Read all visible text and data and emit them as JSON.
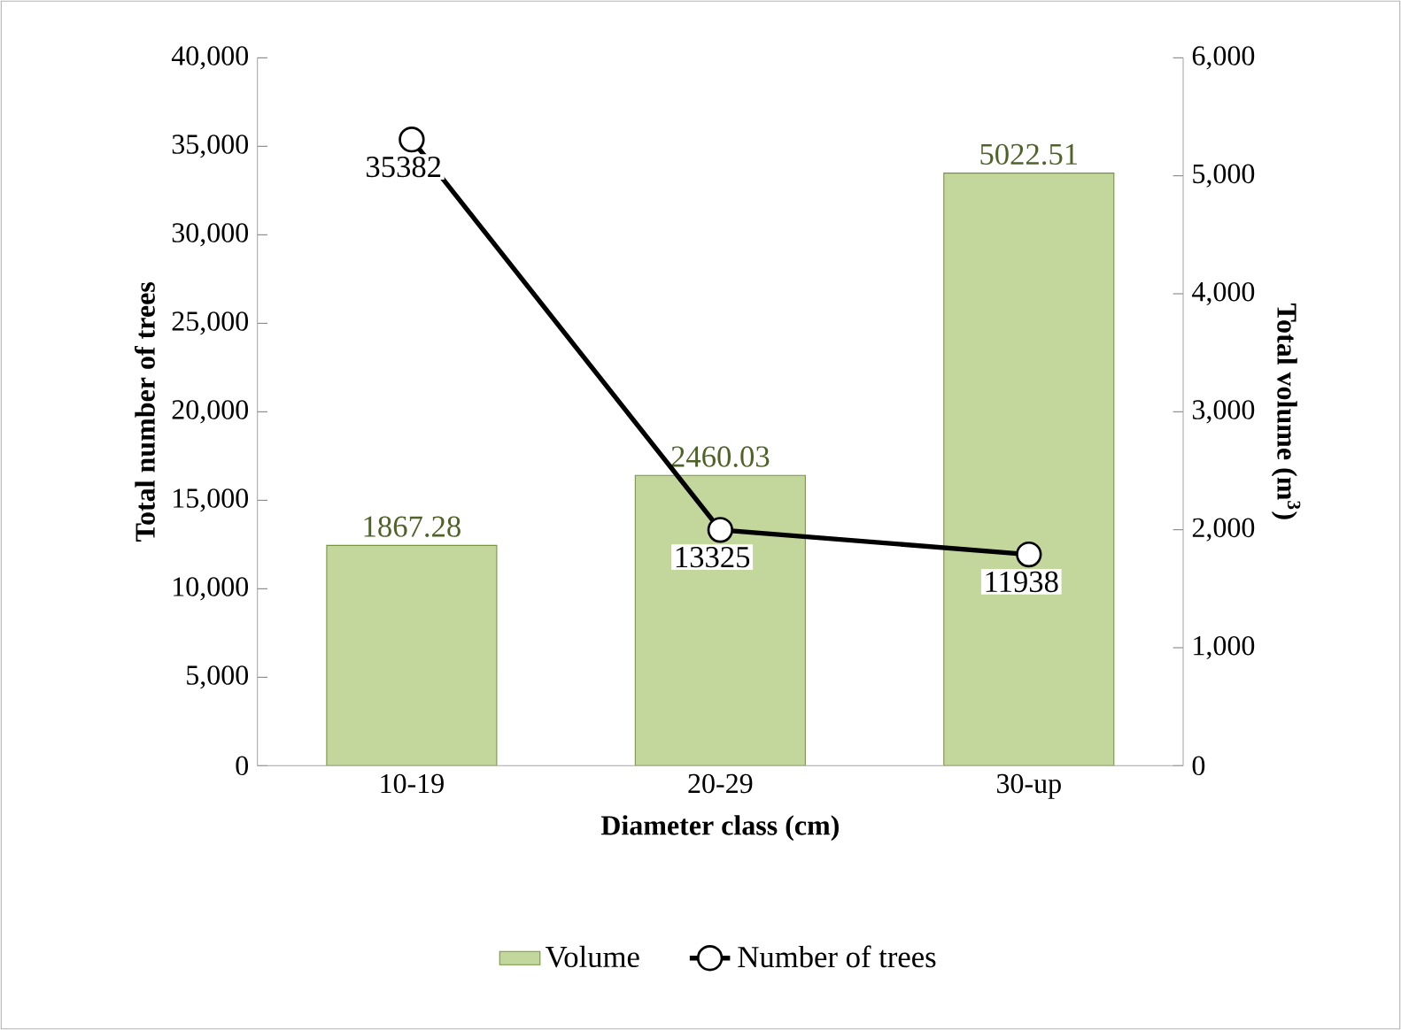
{
  "chart_data": {
    "type": "bar",
    "xlabel": "Diameter class (cm)",
    "ylabel": "Total number of trees",
    "y2label": "Total volume (m$^{3}$)",
    "categories": [
      "10-19",
      "20-29",
      "30-up"
    ],
    "series": [
      {
        "name": "Volume",
        "axis": "y2",
        "color": "#c3d69b",
        "values": [
          1867.28,
          2460.03,
          5022.51
        ]
      },
      {
        "name": "Number of trees",
        "type": "line",
        "color": "#000000",
        "values": [
          35382,
          13325,
          11938
        ]
      }
    ],
    "ylim": [
      0,
      40000
    ],
    "yticks": [
      0,
      {
        "value": 5000,
        "label": "5,000"
      },
      {
        "value": 10000,
        "label": "10,000"
      },
      {
        "value": 15000,
        "label": "15,000"
      },
      {
        "value": 20000,
        "label": "20,000"
      },
      {
        "value": 25000,
        "label": "25,000"
      },
      {
        "value": 30000,
        "label": "30,000"
      },
      {
        "value": 35000,
        "label": "35,000"
      },
      {
        "value": 40000,
        "label": "40,000"
      }
    ],
    "y2lim": [
      0,
      6000
    ],
    "y2ticks": [
      0,
      {
        "value": 1000,
        "label": "1,000"
      },
      {
        "value": 2000,
        "label": "2,000"
      },
      {
        "value": 3000,
        "label": "3,000"
      },
      {
        "value": 4000,
        "label": "4,000"
      },
      {
        "value": 5000,
        "label": "5,000"
      },
      {
        "value": 6000,
        "label": "6,000"
      }
    ],
    "data_labels": true,
    "legend": "bottom",
    "marker": "circle",
    "grid": false
  }
}
